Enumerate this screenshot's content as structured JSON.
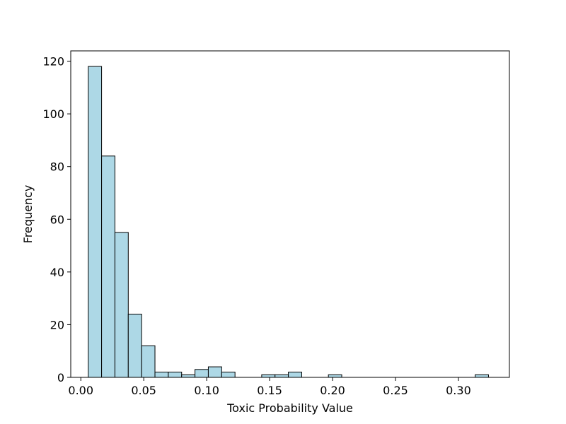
{
  "chart_data": {
    "type": "bar",
    "subtype": "histogram",
    "xlabel": "Toxic Probability Value",
    "ylabel": "Frequency",
    "xlim": [
      -0.008,
      0.3405
    ],
    "ylim": [
      0,
      123.9
    ],
    "bar_color": "#add8e6",
    "edge_color": "#000000",
    "grid": false,
    "x_ticks": [
      0.0,
      0.05,
      0.1,
      0.15,
      0.2,
      0.25,
      0.3
    ],
    "x_tick_labels": [
      "0.00",
      "0.05",
      "0.10",
      "0.15",
      "0.20",
      "0.25",
      "0.30"
    ],
    "y_ticks": [
      0,
      20,
      40,
      60,
      80,
      100,
      120
    ],
    "y_tick_labels": [
      "0",
      "20",
      "40",
      "60",
      "80",
      "100",
      "120"
    ],
    "bin_width": 0.0106,
    "bins": [
      {
        "start": 0.0059,
        "count": 118
      },
      {
        "start": 0.0165,
        "count": 84
      },
      {
        "start": 0.0271,
        "count": 55
      },
      {
        "start": 0.0377,
        "count": 24
      },
      {
        "start": 0.0483,
        "count": 12
      },
      {
        "start": 0.0589,
        "count": 2
      },
      {
        "start": 0.0695,
        "count": 2
      },
      {
        "start": 0.0801,
        "count": 1
      },
      {
        "start": 0.0907,
        "count": 3
      },
      {
        "start": 0.1013,
        "count": 4
      },
      {
        "start": 0.1119,
        "count": 2
      },
      {
        "start": 0.1225,
        "count": 0
      },
      {
        "start": 0.1331,
        "count": 0
      },
      {
        "start": 0.1437,
        "count": 1
      },
      {
        "start": 0.1543,
        "count": 1
      },
      {
        "start": 0.1649,
        "count": 2
      },
      {
        "start": 0.1755,
        "count": 0
      },
      {
        "start": 0.1861,
        "count": 0
      },
      {
        "start": 0.1967,
        "count": 1
      },
      {
        "start": 0.2073,
        "count": 0
      },
      {
        "start": 0.2179,
        "count": 0
      },
      {
        "start": 0.2285,
        "count": 0
      },
      {
        "start": 0.2391,
        "count": 0
      },
      {
        "start": 0.2497,
        "count": 0
      },
      {
        "start": 0.2603,
        "count": 0
      },
      {
        "start": 0.2709,
        "count": 0
      },
      {
        "start": 0.2815,
        "count": 0
      },
      {
        "start": 0.2921,
        "count": 0
      },
      {
        "start": 0.3027,
        "count": 0
      },
      {
        "start": 0.3133,
        "count": 1
      }
    ]
  }
}
